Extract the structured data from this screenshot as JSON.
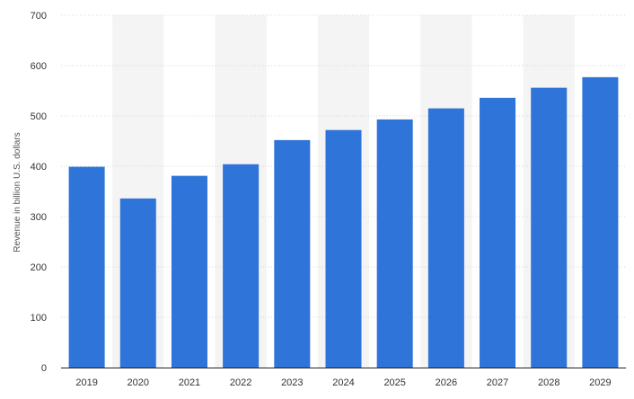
{
  "chart_data": {
    "type": "bar",
    "categories": [
      "2019",
      "2020",
      "2021",
      "2022",
      "2023",
      "2024",
      "2025",
      "2026",
      "2027",
      "2028",
      "2029"
    ],
    "values": [
      399,
      336,
      381,
      404,
      452,
      472,
      493,
      515,
      536,
      556,
      577
    ],
    "ylabel": "Revenue in billion U.S. dollars",
    "ylim": [
      0,
      700
    ],
    "yticks": [
      0,
      100,
      200,
      300,
      400,
      500,
      600,
      700
    ],
    "grid": true,
    "legend": "none",
    "colors": {
      "bar": "#2f74d8",
      "band": "#f4f4f4",
      "grid": "#d9d9d9",
      "axis": "#222222"
    }
  }
}
